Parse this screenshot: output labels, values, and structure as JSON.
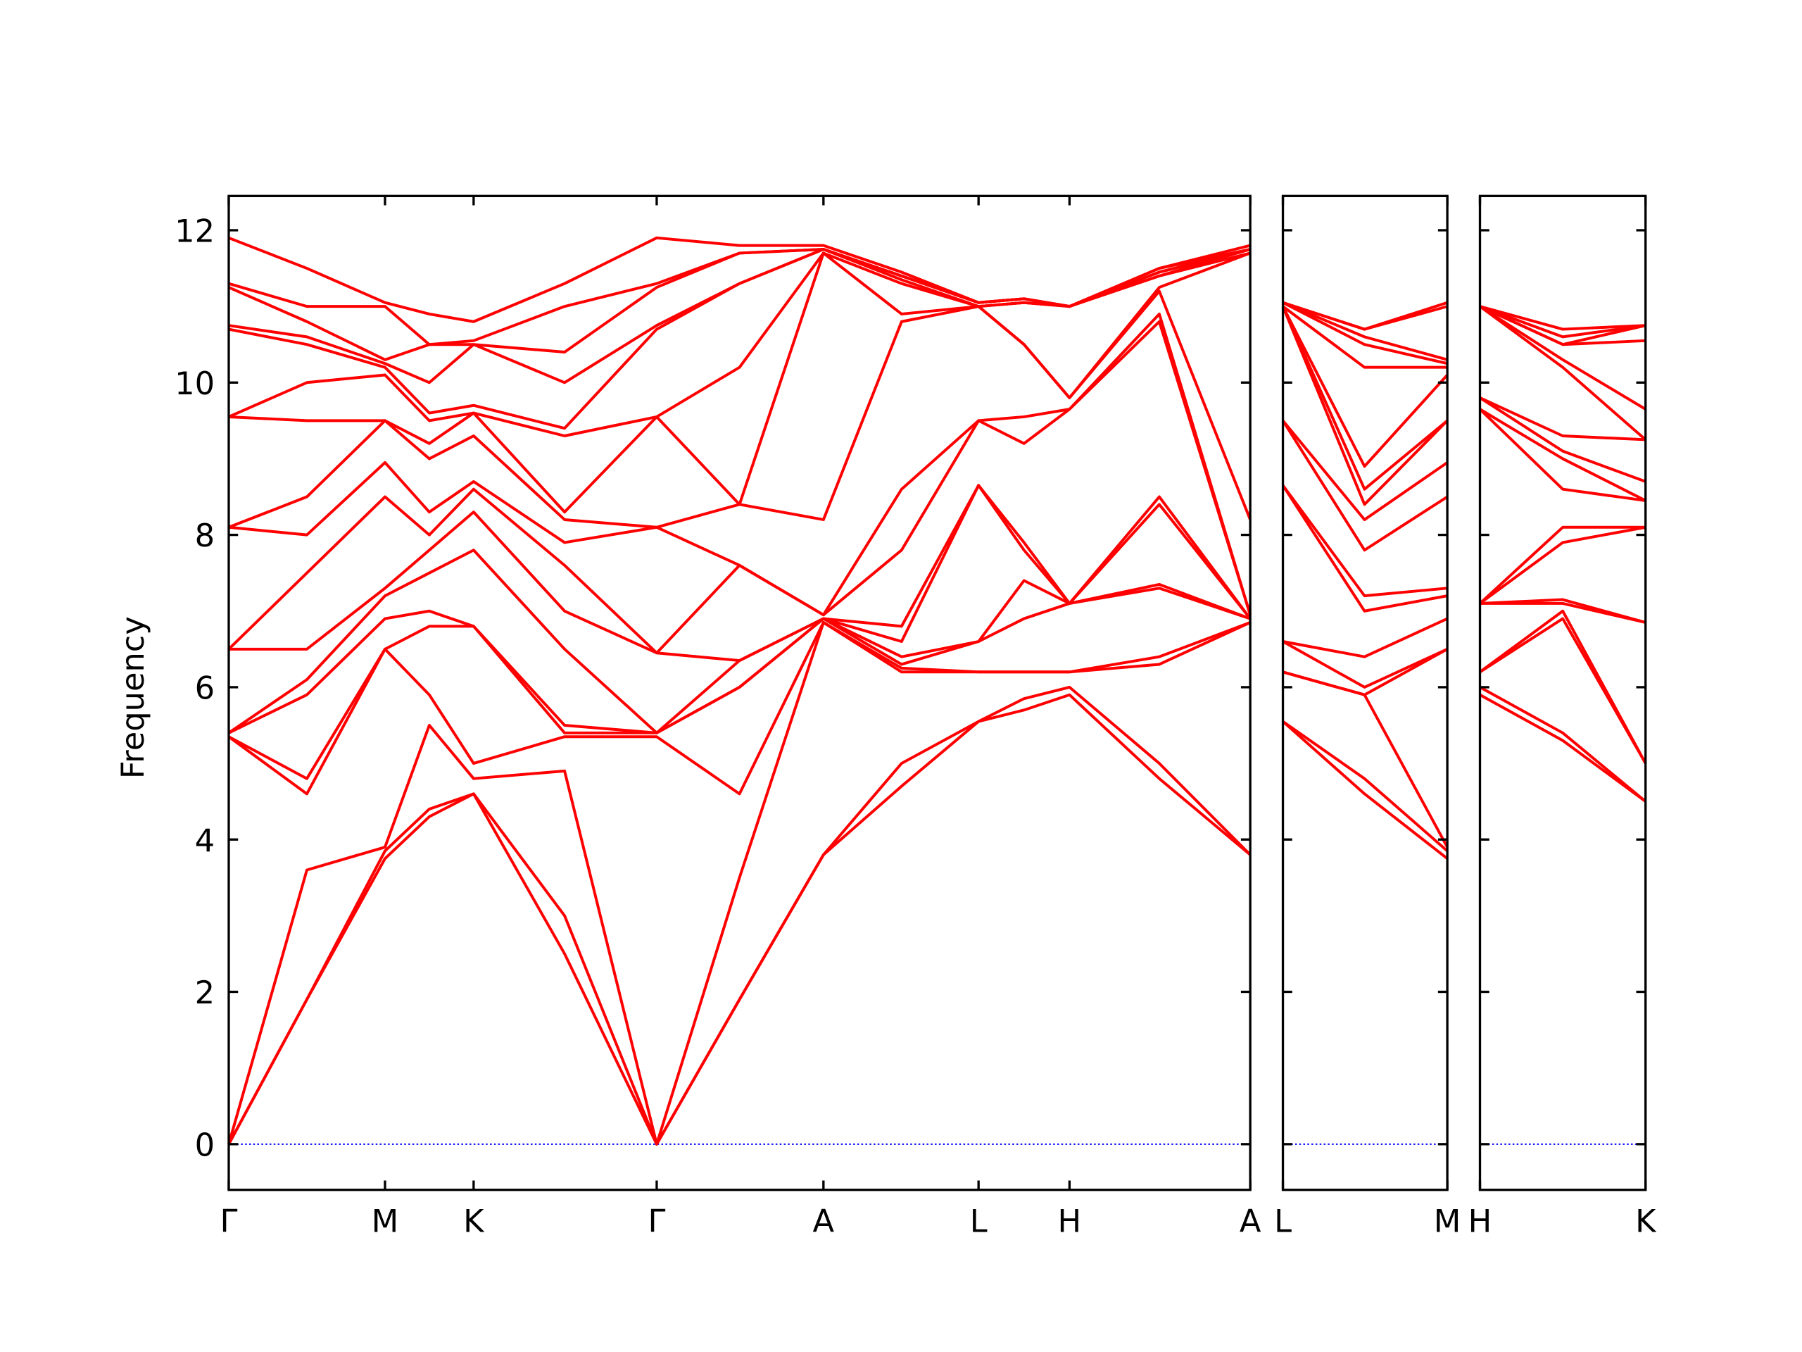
{
  "chart_data": [
    {
      "type": "line",
      "ylabel": "Frequency",
      "color": "#ff0000",
      "hline": 0,
      "hline_color": "#0000ff",
      "xlim": [
        0,
        8.76
      ],
      "ylim": [
        -0.6,
        12.45
      ],
      "yticks": [
        0,
        2,
        4,
        6,
        8,
        10,
        12
      ],
      "xticks": [
        {
          "value": 0,
          "label": "Γ"
        },
        {
          "value": 1.34,
          "label": "M"
        },
        {
          "value": 2.1,
          "label": "K"
        },
        {
          "value": 3.67,
          "label": "Γ"
        },
        {
          "value": 5.1,
          "label": "A"
        },
        {
          "value": 6.43,
          "label": "L"
        },
        {
          "value": 7.21,
          "label": "H"
        },
        {
          "value": 8.76,
          "label": "A"
        }
      ],
      "x": [
        0,
        0.67,
        1.34,
        1.72,
        2.1,
        2.88,
        3.67,
        4.38,
        5.1,
        5.77,
        6.43,
        6.82,
        7.21,
        7.98,
        8.76
      ],
      "series": [
        {
          "values": [
            0,
            1.9,
            3.75,
            4.3,
            4.6,
            2.5,
            0,
            1.9,
            3.8,
            4.7,
            5.55,
            5.7,
            5.9,
            4.8,
            3.8
          ]
        },
        {
          "values": [
            0,
            1.9,
            3.85,
            4.4,
            4.6,
            3.0,
            0,
            1.9,
            3.8,
            5.0,
            5.55,
            5.85,
            6.0,
            5.0,
            3.8
          ]
        },
        {
          "values": [
            0,
            3.6,
            3.9,
            5.5,
            4.8,
            4.9,
            0,
            3.5,
            6.85,
            6.2,
            6.2,
            6.2,
            6.2,
            6.3,
            6.85
          ]
        },
        {
          "values": [
            5.35,
            4.6,
            6.5,
            5.9,
            5.0,
            5.35,
            5.35,
            4.6,
            6.85,
            6.25,
            6.2,
            6.2,
            6.2,
            6.4,
            6.85
          ]
        },
        {
          "values": [
            5.35,
            4.8,
            6.5,
            6.8,
            6.8,
            5.4,
            5.4,
            6.0,
            6.9,
            6.3,
            6.6,
            6.9,
            7.1,
            7.3,
            6.9
          ]
        },
        {
          "values": [
            5.4,
            5.9,
            6.9,
            7.0,
            6.8,
            5.5,
            5.4,
            6.0,
            6.9,
            6.4,
            6.6,
            7.4,
            7.1,
            7.35,
            6.9
          ]
        },
        {
          "values": [
            5.4,
            6.1,
            7.2,
            7.5,
            7.8,
            6.5,
            5.4,
            6.35,
            6.9,
            6.6,
            8.65,
            7.8,
            7.1,
            8.4,
            6.9
          ]
        },
        {
          "values": [
            6.5,
            6.5,
            7.3,
            7.8,
            8.3,
            7.0,
            6.45,
            6.35,
            6.9,
            6.8,
            8.65,
            7.9,
            7.1,
            8.5,
            6.9
          ]
        },
        {
          "values": [
            6.5,
            7.5,
            8.5,
            8.0,
            8.6,
            7.6,
            6.45,
            7.6,
            6.95,
            7.8,
            9.5,
            9.2,
            9.65,
            10.8,
            6.95
          ]
        },
        {
          "values": [
            8.1,
            8.0,
            8.95,
            8.3,
            8.7,
            7.9,
            8.1,
            7.6,
            6.95,
            8.6,
            9.5,
            9.55,
            9.65,
            10.9,
            6.95
          ]
        },
        {
          "values": [
            8.1,
            8.5,
            9.5,
            9.0,
            9.3,
            8.2,
            8.1,
            8.4,
            8.2,
            10.8,
            11.0,
            10.5,
            9.8,
            11.2,
            8.2
          ]
        },
        {
          "values": [
            9.55,
            9.5,
            9.5,
            9.2,
            9.6,
            8.3,
            9.55,
            8.4,
            11.7,
            10.9,
            11.0,
            10.5,
            9.8,
            11.25,
            11.7
          ]
        },
        {
          "values": [
            9.55,
            10.0,
            10.1,
            9.5,
            9.6,
            9.3,
            9.55,
            10.2,
            11.7,
            11.3,
            11.0,
            11.05,
            11.0,
            11.4,
            11.7
          ]
        },
        {
          "values": [
            10.7,
            10.5,
            10.2,
            9.6,
            9.7,
            9.4,
            10.7,
            11.3,
            11.75,
            11.35,
            11.0,
            11.05,
            11.0,
            11.4,
            11.75
          ]
        },
        {
          "values": [
            10.75,
            10.6,
            10.25,
            10.0,
            10.5,
            10.0,
            10.75,
            11.3,
            11.75,
            11.4,
            11.05,
            11.1,
            11.0,
            11.45,
            11.75
          ]
        },
        {
          "values": [
            11.25,
            10.8,
            10.3,
            10.5,
            10.5,
            10.4,
            11.25,
            11.7,
            11.75,
            11.4,
            11.05,
            11.1,
            11.0,
            11.45,
            11.75
          ]
        },
        {
          "values": [
            11.3,
            11.0,
            11.0,
            10.5,
            10.55,
            11.0,
            11.3,
            11.7,
            11.75,
            11.4,
            11.05,
            11.1,
            11.0,
            11.5,
            11.75
          ]
        },
        {
          "values": [
            11.9,
            11.5,
            11.05,
            10.9,
            10.8,
            11.3,
            11.9,
            11.8,
            11.8,
            11.45,
            11.05,
            11.1,
            11.0,
            11.5,
            11.8
          ]
        }
      ]
    },
    {
      "type": "line",
      "color": "#ff0000",
      "hline": 0,
      "hline_color": "#0000ff",
      "xlim": [
        0,
        1.41
      ],
      "ylim": [
        -0.6,
        12.45
      ],
      "yticks": [
        0,
        2,
        4,
        6,
        8,
        10,
        12
      ],
      "xticks": [
        {
          "value": 0,
          "label": "L"
        },
        {
          "value": 1.41,
          "label": "M"
        }
      ],
      "x": [
        0,
        0.7,
        1.41
      ],
      "series": [
        {
          "values": [
            5.55,
            4.6,
            3.75
          ]
        },
        {
          "values": [
            5.55,
            4.8,
            3.85
          ]
        },
        {
          "values": [
            6.2,
            5.9,
            3.9
          ]
        },
        {
          "values": [
            6.2,
            5.9,
            6.5
          ]
        },
        {
          "values": [
            6.6,
            6.0,
            6.5
          ]
        },
        {
          "values": [
            6.6,
            6.4,
            6.9
          ]
        },
        {
          "values": [
            8.65,
            7.0,
            7.2
          ]
        },
        {
          "values": [
            8.65,
            7.2,
            7.3
          ]
        },
        {
          "values": [
            9.5,
            7.8,
            8.5
          ]
        },
        {
          "values": [
            9.5,
            8.2,
            8.95
          ]
        },
        {
          "values": [
            11.0,
            8.4,
            9.5
          ]
        },
        {
          "values": [
            11.0,
            8.6,
            9.5
          ]
        },
        {
          "values": [
            11.0,
            8.9,
            10.1
          ]
        },
        {
          "values": [
            11.0,
            10.2,
            10.2
          ]
        },
        {
          "values": [
            11.05,
            10.5,
            10.25
          ]
        },
        {
          "values": [
            11.05,
            10.6,
            10.3
          ]
        },
        {
          "values": [
            11.05,
            10.7,
            11.0
          ]
        },
        {
          "values": [
            11.05,
            10.7,
            11.05
          ]
        }
      ]
    },
    {
      "type": "line",
      "color": "#ff0000",
      "hline": 0,
      "hline_color": "#0000ff",
      "xlim": [
        0,
        1.42
      ],
      "ylim": [
        -0.6,
        12.45
      ],
      "yticks": [
        0,
        2,
        4,
        6,
        8,
        10,
        12
      ],
      "xticks": [
        {
          "value": 0,
          "label": "H"
        },
        {
          "value": 1.42,
          "label": "K"
        }
      ],
      "x": [
        0,
        0.71,
        1.42
      ],
      "series": [
        {
          "values": [
            5.9,
            5.3,
            4.5
          ]
        },
        {
          "values": [
            6.0,
            5.4,
            4.5
          ]
        },
        {
          "values": [
            6.2,
            6.9,
            5.0
          ]
        },
        {
          "values": [
            6.2,
            7.0,
            5.0
          ]
        },
        {
          "values": [
            7.1,
            7.1,
            6.85
          ]
        },
        {
          "values": [
            7.1,
            7.15,
            6.85
          ]
        },
        {
          "values": [
            7.1,
            7.9,
            8.1
          ]
        },
        {
          "values": [
            7.1,
            8.1,
            8.1
          ]
        },
        {
          "values": [
            9.65,
            8.6,
            8.45
          ]
        },
        {
          "values": [
            9.65,
            9.0,
            8.45
          ]
        },
        {
          "values": [
            9.8,
            9.1,
            8.7
          ]
        },
        {
          "values": [
            9.8,
            9.3,
            9.25
          ]
        },
        {
          "values": [
            11.0,
            10.2,
            9.25
          ]
        },
        {
          "values": [
            11.0,
            10.3,
            9.65
          ]
        },
        {
          "values": [
            11.0,
            10.5,
            10.55
          ]
        },
        {
          "values": [
            11.0,
            10.5,
            10.75
          ]
        },
        {
          "values": [
            11.0,
            10.6,
            10.75
          ]
        },
        {
          "values": [
            11.0,
            10.7,
            10.75
          ]
        }
      ]
    }
  ]
}
